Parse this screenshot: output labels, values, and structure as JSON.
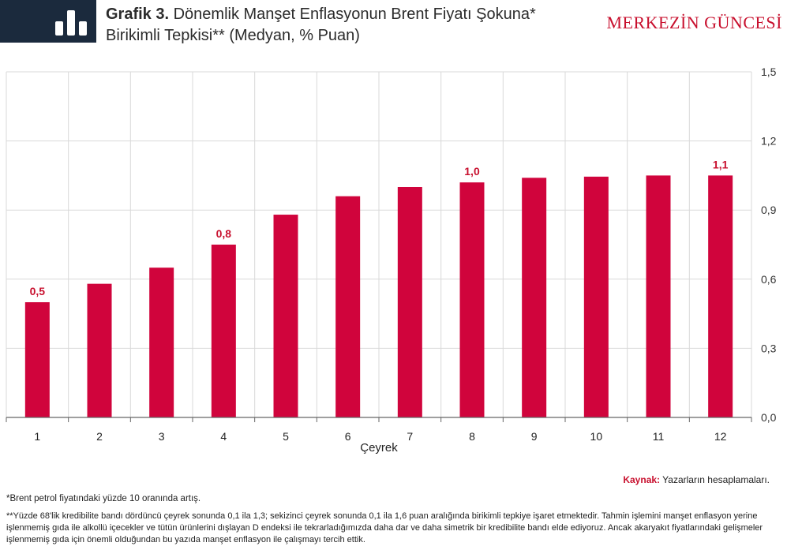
{
  "header": {
    "title_bold": "Grafik 3.",
    "title_rest": "Dönemlik Manşet Enflasyonun Brent Fiyatı Şokuna* Birikimli Tepkisi** (Medyan, % Puan)",
    "brand": "MERKEZİN GÜNCESİ"
  },
  "chart_data": {
    "type": "bar",
    "categories": [
      "1",
      "2",
      "3",
      "4",
      "5",
      "6",
      "7",
      "8",
      "9",
      "10",
      "11",
      "12"
    ],
    "values": [
      0.5,
      0.58,
      0.65,
      0.75,
      0.88,
      0.96,
      1.0,
      1.02,
      1.04,
      1.045,
      1.05,
      1.05
    ],
    "data_labels": [
      "0,5",
      "",
      "",
      "0,8",
      "",
      "",
      "",
      "1,0",
      "",
      "",
      "",
      "1,1"
    ],
    "xlabel": "Çeyrek",
    "ylabel": "",
    "ylim": [
      0,
      1.5
    ],
    "yticks": [
      "0,0",
      "0,3",
      "0,6",
      "0,9",
      "1,2",
      "1,5"
    ],
    "grid": true,
    "y_axis_side": "right",
    "bar_color": "#d0043c",
    "label_color": "#c8102e"
  },
  "source": {
    "label": "Kaynak:",
    "text": "Yazarların hesaplamaları."
  },
  "footnotes": {
    "note1": "*Brent petrol fiyatındaki yüzde 10 oranında artış.",
    "note2": "**Yüzde 68'lik kredibilite bandı dördüncü çeyrek sonunda 0,1 ila 1,3; sekizinci çeyrek sonunda 0,1 ila 1,6 puan aralığında birikimli tepkiye işaret etmektedir. Tahmin işlemini manşet enflasyon yerine işlenmemiş gıda ile alkollü içecekler ve tütün ürünlerini dışlayan D endeksi ile tekrarladığımızda daha dar ve daha simetrik bir kredibilite bandı elde ediyoruz. Ancak akaryakıt fiyatlarındaki gelişmeler işlenmemiş gıda için önemli olduğundan bu yazıda manşet enflasyon ile çalışmayı tercih ettik."
  }
}
